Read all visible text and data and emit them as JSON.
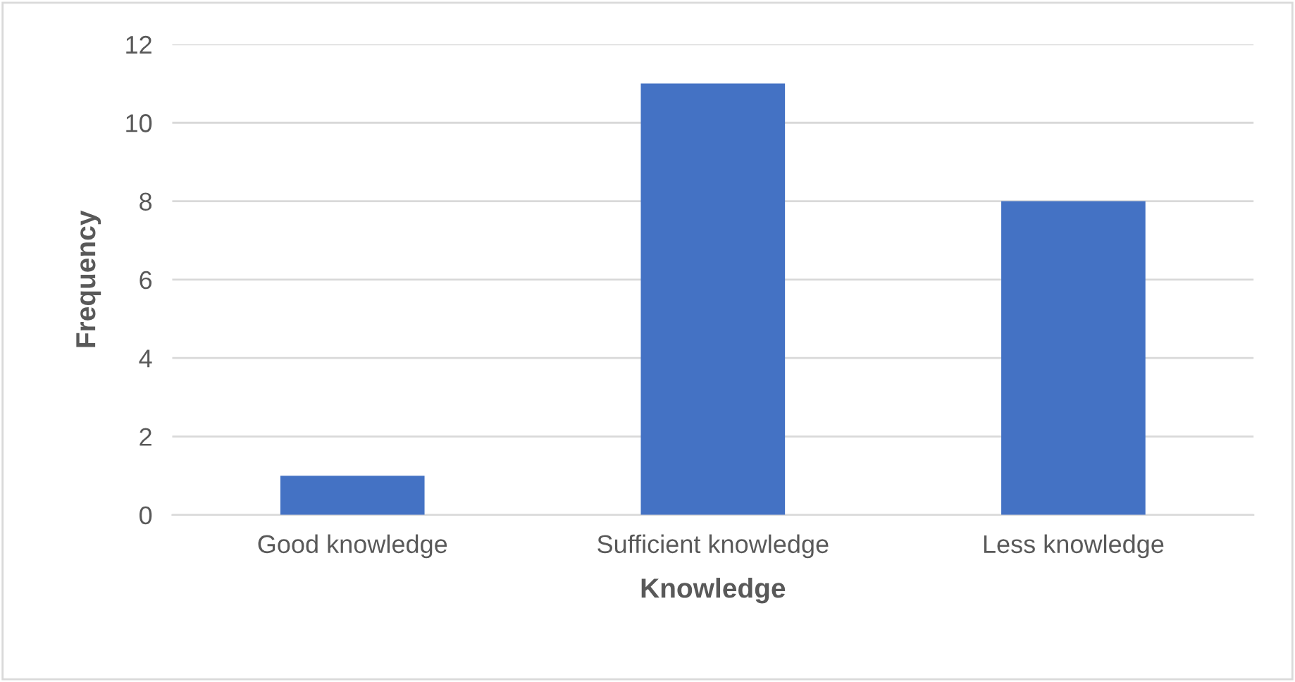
{
  "chart_data": {
    "type": "bar",
    "xlabel": "Knowledge",
    "ylabel": "Frequency",
    "categories": [
      "Good knowledge",
      "Sufficient knowledge",
      "Less knowledge"
    ],
    "values": [
      1,
      11,
      8
    ],
    "color": "#4472c4",
    "ylim": [
      0,
      12
    ],
    "yticks": [
      0,
      2,
      4,
      6,
      8,
      10,
      12
    ],
    "grid": "y"
  }
}
